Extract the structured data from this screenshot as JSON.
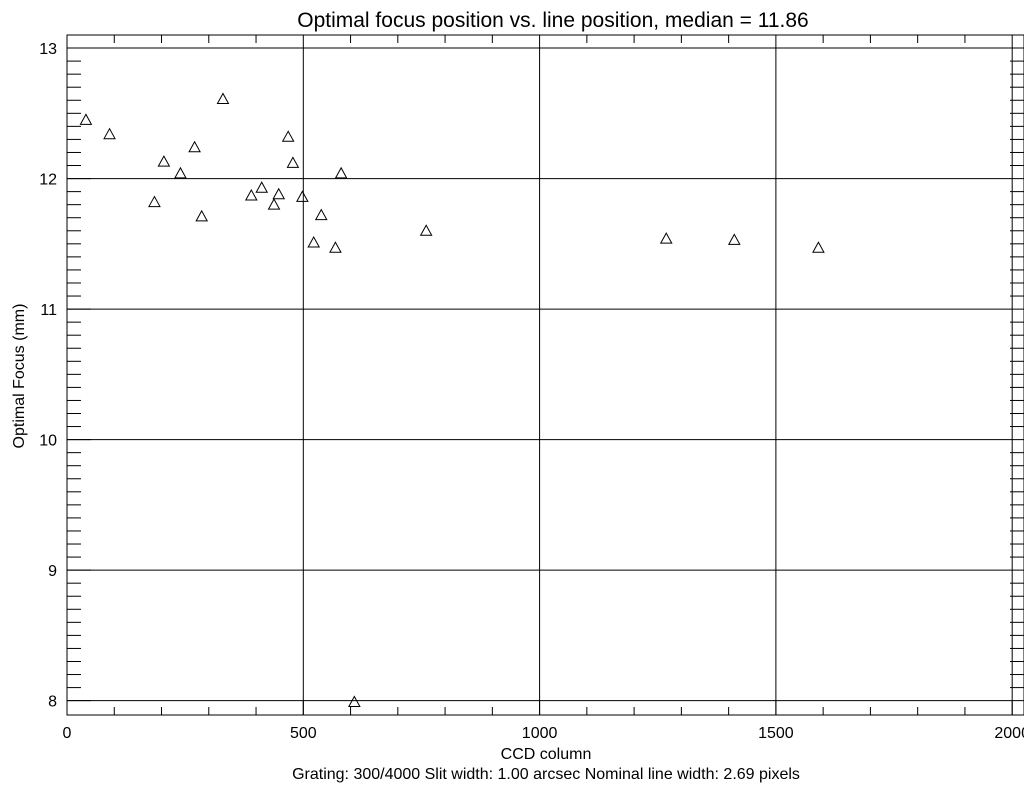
{
  "chart_data": {
    "type": "scatter",
    "title": "Optimal focus position vs. line position, median =   11.86",
    "xlabel": "CCD column",
    "ylabel": "Optimal Focus (mm)",
    "footer": "Grating: 300/4000   Slit width:  1.00 arcsec    Nominal line width:   2.69 pixels",
    "xlim": [
      -0.01,
      2025
    ],
    "ylim": [
      7.89,
      13.1
    ],
    "x_ticks": [
      0,
      500,
      1000,
      1500,
      2000
    ],
    "x_tick_labels": [
      "0",
      "500",
      "1000",
      "1500",
      "2000"
    ],
    "y_ticks": [
      8,
      9,
      10,
      11,
      12,
      13
    ],
    "y_tick_labels": [
      "8",
      "9",
      "10",
      "11",
      "12",
      "13"
    ],
    "grid": true,
    "marker": "triangle",
    "points": [
      {
        "x": 40,
        "y": 12.45
      },
      {
        "x": 90,
        "y": 12.34
      },
      {
        "x": 185,
        "y": 11.82
      },
      {
        "x": 205,
        "y": 12.13
      },
      {
        "x": 240,
        "y": 12.04
      },
      {
        "x": 270,
        "y": 12.24
      },
      {
        "x": 285,
        "y": 11.71
      },
      {
        "x": 330,
        "y": 12.61
      },
      {
        "x": 390,
        "y": 11.87
      },
      {
        "x": 412,
        "y": 11.93
      },
      {
        "x": 438,
        "y": 11.8
      },
      {
        "x": 448,
        "y": 11.88
      },
      {
        "x": 468,
        "y": 12.32
      },
      {
        "x": 478,
        "y": 12.12
      },
      {
        "x": 498,
        "y": 11.86
      },
      {
        "x": 522,
        "y": 11.51
      },
      {
        "x": 538,
        "y": 11.72
      },
      {
        "x": 568,
        "y": 11.47
      },
      {
        "x": 580,
        "y": 12.04
      },
      {
        "x": 608,
        "y": 7.99
      },
      {
        "x": 760,
        "y": 11.6
      },
      {
        "x": 1268,
        "y": 11.54
      },
      {
        "x": 1412,
        "y": 11.53
      },
      {
        "x": 1590,
        "y": 11.47
      }
    ]
  }
}
